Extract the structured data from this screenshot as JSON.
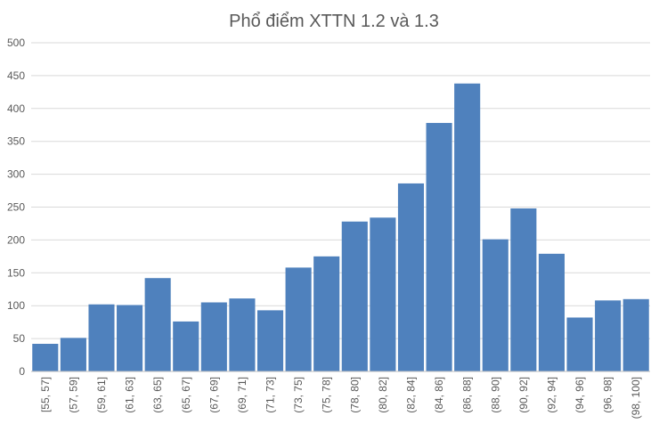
{
  "chart_data": {
    "type": "bar",
    "title": "Phổ điểm XTTN 1.2 và 1.3",
    "xlabel": "",
    "ylabel": "",
    "categories": [
      "[55, 57]",
      "(57, 59]",
      "(59, 61]",
      "(61, 63]",
      "(63, 65]",
      "(65, 67]",
      "(67, 69]",
      "(69, 71]",
      "(71, 73]",
      "(73, 75]",
      "(75, 78]",
      "(78, 80]",
      "(80, 82]",
      "(82, 84]",
      "(84, 86]",
      "(86, 88]",
      "(88, 90]",
      "(90, 92]",
      "(92, 94]",
      "(94, 96]",
      "(96, 98]",
      "(98, 100]"
    ],
    "values": [
      42,
      51,
      102,
      101,
      142,
      76,
      105,
      111,
      93,
      158,
      175,
      228,
      234,
      286,
      378,
      438,
      201,
      248,
      179,
      82,
      108,
      110
    ],
    "ylim": [
      0,
      500
    ],
    "yticks": [
      "0",
      "50",
      "100",
      "150",
      "200",
      "250",
      "300",
      "350",
      "400",
      "450",
      "500"
    ],
    "grid": true,
    "legend": "none",
    "bar_color": "#4f81bd"
  }
}
